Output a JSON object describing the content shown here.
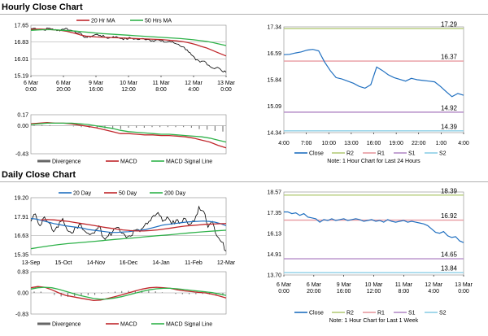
{
  "hourly_title": "Hourly Close Chart",
  "daily_title": "Daily Close Chart",
  "colors": {
    "close": "#1f6fc0",
    "ma_short": "#c0262b",
    "ma_long": "#2fb24a",
    "r2": "#b5cc7a",
    "r1": "#e89aa0",
    "s1": "#b48cc8",
    "s2": "#8ccfe6",
    "divergence": "#666666",
    "macd": "#c0262b",
    "signal": "#2fb24a",
    "price_black": "#000000"
  },
  "chart_data": [
    {
      "id": "hourly-price",
      "type": "line",
      "legend": [
        "20 Hr MA",
        "50 Hrs MA"
      ],
      "y_ticks": [
        "17.65",
        "16.83",
        "16.01",
        "15.19"
      ],
      "ylim": [
        15.19,
        17.65
      ],
      "x_ticks": [
        [
          "6 Mar",
          "0:00"
        ],
        [
          "6 Mar",
          "20:00"
        ],
        [
          "9 Mar",
          "16:00"
        ],
        [
          "10 Mar",
          "12:00"
        ],
        [
          "11 Mar",
          "8:00"
        ],
        [
          "12 Mar",
          "4:00"
        ],
        [
          "13 Mar",
          "0:00"
        ]
      ],
      "close": [
        17.48,
        17.5,
        17.46,
        17.42,
        17.5,
        17.47,
        17.38,
        17.44,
        17.5,
        17.41,
        17.36,
        17.28,
        17.12,
        17.05,
        17.12,
        17.2,
        17.15,
        17.08,
        17.02,
        17.1,
        17.06,
        17.0,
        16.98,
        17.03,
        16.98,
        16.95,
        17.0,
        16.96,
        16.9,
        16.94,
        16.88,
        16.82,
        16.86,
        16.78,
        16.72,
        16.6,
        16.45,
        16.2,
        15.95,
        15.85,
        15.9,
        15.7,
        15.55,
        15.6,
        15.42,
        15.35
      ],
      "ma20": [
        17.45,
        17.46,
        17.46,
        17.45,
        17.44,
        17.42,
        17.4,
        17.36,
        17.3,
        17.24,
        17.17,
        17.12,
        17.1,
        17.08,
        17.07,
        17.06,
        17.05,
        17.04,
        17.03,
        17.02,
        17.01,
        17.0,
        16.99,
        16.98,
        16.97,
        16.96,
        16.95,
        16.93,
        16.91,
        16.89,
        16.86,
        16.82,
        16.77,
        16.7,
        16.62,
        16.55,
        16.45,
        16.35,
        16.25,
        16.15
      ],
      "ma50": [
        17.4,
        17.42,
        17.43,
        17.43,
        17.42,
        17.4,
        17.38,
        17.36,
        17.33,
        17.3,
        17.27,
        17.24,
        17.22,
        17.2,
        17.18,
        17.16,
        17.14,
        17.12,
        17.1,
        17.08,
        17.06,
        17.04,
        17.02,
        17.0,
        16.97,
        16.94,
        16.9,
        16.86,
        16.8,
        16.73,
        16.66
      ]
    },
    {
      "id": "hourly-macd",
      "type": "bar",
      "y_ticks": [
        "0.17",
        "0.00",
        "-0.43"
      ],
      "ylim": [
        -0.43,
        0.17
      ],
      "legend": [
        "Divergence",
        "MACD",
        "MACD Signal Line"
      ],
      "macd": [
        0.03,
        0.04,
        0.05,
        0.04,
        0.04,
        0.03,
        0.01,
        -0.01,
        -0.03,
        -0.06,
        -0.09,
        -0.12,
        -0.12,
        -0.13,
        -0.14,
        -0.14,
        -0.15,
        -0.15,
        -0.16,
        -0.17,
        -0.19,
        -0.22,
        -0.25,
        -0.3,
        -0.34
      ],
      "signal": [
        0.02,
        0.03,
        0.04,
        0.04,
        0.04,
        0.04,
        0.03,
        0.02,
        0.0,
        -0.02,
        -0.04,
        -0.07,
        -0.09,
        -0.1,
        -0.11,
        -0.12,
        -0.13,
        -0.13,
        -0.14,
        -0.15,
        -0.16,
        -0.17,
        -0.19,
        -0.22,
        -0.25
      ],
      "divergence": [
        0.01,
        0.01,
        0.01,
        0.0,
        0.0,
        -0.01,
        -0.02,
        -0.03,
        -0.03,
        -0.04,
        -0.05,
        -0.05,
        -0.03,
        -0.03,
        -0.03,
        -0.02,
        -0.02,
        -0.02,
        -0.02,
        -0.02,
        -0.03,
        -0.05,
        -0.06,
        -0.08,
        -0.09
      ]
    },
    {
      "id": "hourly-levels",
      "type": "line",
      "y_ticks": [
        "17.34",
        "16.59",
        "15.84",
        "15.09",
        "14.34"
      ],
      "ylim": [
        14.34,
        17.34
      ],
      "x_ticks": [
        "4:00",
        "7:00",
        "10:00",
        "13:00",
        "16:00",
        "19:00",
        "22:00",
        "1:00",
        "4:00"
      ],
      "close": [
        16.55,
        16.56,
        16.6,
        16.63,
        16.68,
        16.7,
        16.66,
        16.35,
        16.1,
        15.9,
        15.86,
        15.8,
        15.74,
        15.65,
        15.6,
        15.7,
        16.2,
        16.1,
        15.98,
        15.9,
        15.85,
        15.8,
        15.88,
        15.84,
        15.82,
        15.8,
        15.78,
        15.65,
        15.5,
        15.36,
        15.45,
        15.4
      ],
      "levels": {
        "r2": "17.29",
        "r1": "16.37",
        "s1": "14.92",
        "s2": "14.39"
      },
      "legend": [
        "Close",
        "R2",
        "R1",
        "S1",
        "S2"
      ],
      "note": "Note: 1 Hour Chart for Last 24 Hours"
    },
    {
      "id": "daily-price",
      "type": "line",
      "legend": [
        "20 Day",
        "50 Day",
        "200 Day"
      ],
      "y_ticks": [
        "19.20",
        "17.91",
        "16.63",
        "15.35"
      ],
      "ylim": [
        15.35,
        19.2
      ],
      "x_ticks": [
        "13-Sep",
        "15-Oct",
        "14-Nov",
        "16-Dec",
        "14-Jan",
        "11-Feb",
        "12-Mar"
      ],
      "close": [
        17.6,
        18.1,
        17.3,
        17.9,
        17.5,
        16.9,
        17.2,
        17.8,
        17.0,
        16.8,
        17.2,
        17.4,
        16.9,
        16.7,
        16.8,
        17.3,
        16.5,
        16.6,
        16.9,
        17.2,
        16.8,
        16.5,
        16.6,
        17.0,
        16.9,
        17.3,
        17.6,
        18.0,
        18.2,
        17.6,
        17.9,
        17.4,
        17.7,
        17.5,
        17.8,
        17.4,
        17.6,
        18.6,
        18.3,
        17.2,
        17.6,
        16.6,
        16.2,
        15.6
      ],
      "ma20": [
        17.8,
        17.75,
        17.65,
        17.55,
        17.45,
        17.38,
        17.3,
        17.25,
        17.2,
        17.15,
        17.05,
        17.0,
        16.95,
        16.9,
        16.85,
        16.85,
        16.88,
        16.9,
        16.95,
        17.0,
        17.05,
        17.15,
        17.25,
        17.35,
        17.4,
        17.45,
        17.5,
        17.55,
        17.58,
        17.6,
        17.62,
        17.6,
        17.55,
        17.45,
        17.3
      ],
      "ma50": [
        17.7,
        17.72,
        17.7,
        17.65,
        17.6,
        17.52,
        17.45,
        17.38,
        17.3,
        17.22,
        17.15,
        17.08,
        17.02,
        16.98,
        16.95,
        16.95,
        16.98,
        17.02,
        17.08,
        17.15,
        17.22,
        17.28,
        17.32,
        17.36,
        17.4,
        17.42,
        17.44,
        17.45
      ],
      "ma200": [
        15.75,
        15.85,
        15.95,
        16.03,
        16.1,
        16.15,
        16.2,
        16.26,
        16.32,
        16.38,
        16.43,
        16.48,
        16.54,
        16.6,
        16.65,
        16.7,
        16.76,
        16.82,
        16.87,
        16.92,
        16.96,
        17.0
      ]
    },
    {
      "id": "daily-macd",
      "type": "bar",
      "y_ticks": [
        "0.83",
        "0.00",
        "-0.83"
      ],
      "ylim": [
        -0.83,
        0.83
      ],
      "legend": [
        "Divergence",
        "MACD",
        "MACD Signal Line"
      ],
      "macd": [
        0.2,
        0.25,
        0.22,
        0.12,
        0.0,
        -0.1,
        -0.15,
        -0.2,
        -0.25,
        -0.3,
        -0.28,
        -0.22,
        -0.15,
        -0.08,
        0.0,
        0.08,
        0.15,
        0.2,
        0.22,
        0.2,
        0.18,
        0.12,
        0.08,
        0.05,
        0.02,
        0.0,
        -0.05,
        -0.12,
        -0.2
      ],
      "signal": [
        0.15,
        0.2,
        0.22,
        0.2,
        0.14,
        0.06,
        -0.02,
        -0.1,
        -0.16,
        -0.22,
        -0.25,
        -0.24,
        -0.2,
        -0.15,
        -0.08,
        -0.01,
        0.06,
        0.12,
        0.16,
        0.18,
        0.18,
        0.16,
        0.13,
        0.1,
        0.07,
        0.04,
        0.01,
        -0.04,
        -0.1
      ],
      "divergence": [
        0.05,
        0.05,
        0.0,
        -0.08,
        -0.14,
        -0.16,
        -0.13,
        -0.1,
        -0.09,
        -0.08,
        -0.03,
        0.02,
        0.05,
        0.07,
        0.08,
        0.09,
        0.09,
        0.08,
        0.06,
        0.02,
        0.0,
        -0.04,
        -0.05,
        -0.05,
        -0.05,
        -0.04,
        -0.06,
        -0.08,
        -0.1
      ]
    },
    {
      "id": "daily-levels",
      "type": "line",
      "y_ticks": [
        "18.57",
        "17.35",
        "16.13",
        "14.91",
        "13.70"
      ],
      "ylim": [
        13.7,
        18.57
      ],
      "x_ticks": [
        [
          "6 Mar",
          "0:00"
        ],
        [
          "6 Mar",
          "20:00"
        ],
        [
          "9 Mar",
          "16:00"
        ],
        [
          "10 Mar",
          "12:00"
        ],
        [
          "11 Mar",
          "8:00"
        ],
        [
          "12 Mar",
          "4:00"
        ],
        [
          "13 Mar",
          "0:00"
        ]
      ],
      "close": [
        17.4,
        17.4,
        17.3,
        17.35,
        17.2,
        17.3,
        17.1,
        17.05,
        17.0,
        16.8,
        16.95,
        16.9,
        17.0,
        16.9,
        16.95,
        17.0,
        16.9,
        16.95,
        17.0,
        16.95,
        16.85,
        16.9,
        16.95,
        16.85,
        16.9,
        16.8,
        16.95,
        16.85,
        16.8,
        16.85,
        16.9,
        16.8,
        16.85,
        16.8,
        16.75,
        16.7,
        16.6,
        16.4,
        16.2,
        16.15,
        16.25,
        16.0,
        15.9,
        15.95,
        15.7,
        15.6
      ],
      "levels": {
        "r2": "18.39",
        "r1": "16.92",
        "s1": "14.65",
        "s2": "13.84"
      },
      "legend": [
        "Close",
        "R2",
        "R1",
        "S1",
        "S2"
      ],
      "note": "Note: 1 Hour Chart for Last 1 Week"
    }
  ]
}
